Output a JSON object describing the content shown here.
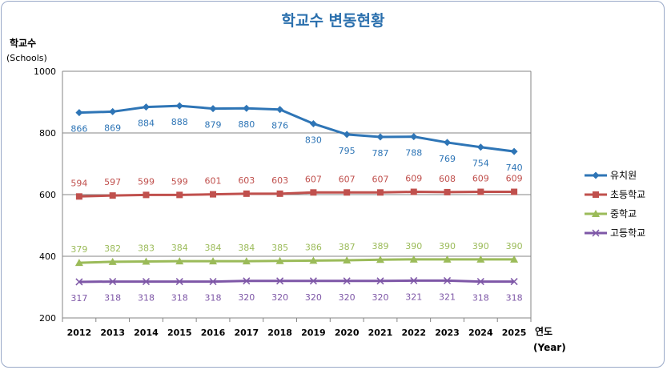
{
  "chart_data": {
    "type": "line",
    "title": "학교수 변동현황",
    "ylabel": "학교수",
    "ylabel_sub": "(Schools)",
    "xlabel": "연도",
    "xlabel_sub": "(Year)",
    "ylim": [
      200,
      1000
    ],
    "yticks": [
      200,
      400,
      600,
      800,
      1000
    ],
    "grid": true,
    "legend": "right",
    "categories": [
      "2012",
      "2013",
      "2014",
      "2015",
      "2016",
      "2017",
      "2018",
      "2019",
      "2020",
      "2021",
      "2022",
      "2023",
      "2024",
      "2025"
    ],
    "series": [
      {
        "name": "유치원",
        "color": "#2e75b6",
        "marker": "diamond",
        "label_pos": "below",
        "values": [
          866,
          869,
          884,
          888,
          879,
          880,
          876,
          830,
          795,
          787,
          788,
          769,
          754,
          740
        ]
      },
      {
        "name": "초등학교",
        "color": "#c0504d",
        "marker": "square",
        "label_pos": "above",
        "values": [
          594,
          597,
          599,
          599,
          601,
          603,
          603,
          607,
          607,
          607,
          609,
          608,
          609,
          609
        ]
      },
      {
        "name": "중학교",
        "color": "#9bbb59",
        "marker": "triangle",
        "label_pos": "above",
        "values": [
          379,
          382,
          383,
          384,
          384,
          384,
          385,
          386,
          387,
          389,
          390,
          390,
          390,
          390
        ]
      },
      {
        "name": "고등학교",
        "color": "#7e57a7",
        "marker": "x",
        "label_pos": "below",
        "values": [
          317,
          318,
          318,
          318,
          318,
          320,
          320,
          320,
          320,
          320,
          321,
          321,
          318,
          318
        ]
      }
    ]
  }
}
